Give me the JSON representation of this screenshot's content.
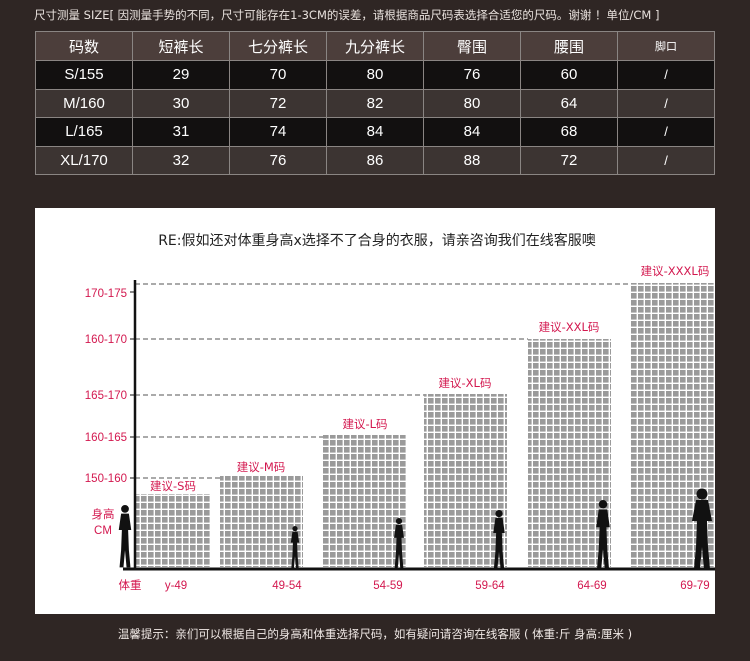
{
  "top_note": "尺寸测量 SIZE[ 因测量手势的不同，尺寸可能存在1-3CM的误差，请根据商品尺码表选择合适您的尺码。谢谢 ！单位/CM ]",
  "table": {
    "headers": [
      "码数",
      "短裤长",
      "七分裤长",
      "九分裤长",
      "臀围",
      "腰围",
      "脚口"
    ],
    "rows": [
      [
        "S/155",
        "29",
        "70",
        "80",
        "76",
        "60",
        "/"
      ],
      [
        "M/160",
        "30",
        "72",
        "82",
        "80",
        "64",
        "/"
      ],
      [
        "L/165",
        "31",
        "74",
        "84",
        "84",
        "68",
        "/"
      ],
      [
        "XL/170",
        "32",
        "76",
        "86",
        "88",
        "72",
        "/"
      ]
    ]
  },
  "panel": {
    "title": "RE:假如还对体重身高x选择不了合身的衣服，请亲咨询我们在线客服噢",
    "height_label_1": "身高",
    "height_label_2": "CM",
    "weight_label": "体重",
    "colors": {
      "accent": "#d3184f",
      "grid_fill": "#9a9a9a",
      "silhouette": "#111111"
    }
  },
  "chart_data": {
    "type": "bar",
    "title": "RE:假如还对体重身高x选择不了合身的衣服，请亲咨询我们在线客服噢",
    "xlabel": "体重",
    "ylabel": "身高 CM",
    "categories": [
      "y-49",
      "49-54",
      "54-59",
      "59-64",
      "64-69",
      "69-79"
    ],
    "bar_labels": [
      "建议-S码",
      "建议-M码",
      "建议-L码",
      "建议-XL码",
      "建议-XXL码",
      "建议-XXXL码"
    ],
    "height_ticks": [
      "170-175",
      "160-170",
      "165-170",
      "160-165",
      "150-160"
    ],
    "values": [
      1,
      2,
      3,
      4,
      5,
      6
    ]
  },
  "bottom_note": "温馨提示：亲们可以根据自己的身高和体重选择尺码，如有疑问请咨询在线客服 ( 体重:斤   身高:厘米 )"
}
